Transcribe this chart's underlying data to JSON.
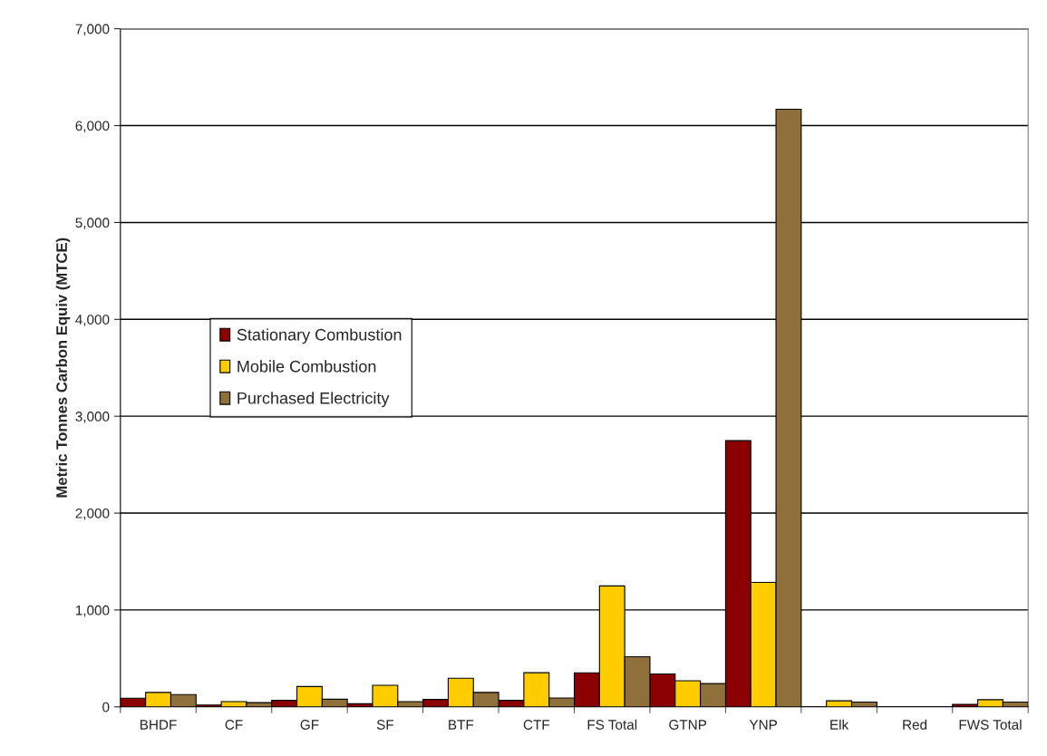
{
  "chart_data": {
    "type": "bar",
    "ylabel": "Metric Tonnes Carbon Equiv (MTCE)",
    "categories": [
      "BHDF",
      "CF",
      "GF",
      "SF",
      "BTF",
      "CTF",
      "FS Total",
      "GTNP",
      "YNP",
      "Elk",
      "Red",
      "FWS Total"
    ],
    "series": [
      {
        "name": "Stationary Combustion",
        "color": "#8b0000",
        "values": [
          89,
          19,
          67,
          32,
          76,
          67,
          351,
          339,
          2748,
          null,
          null,
          25
        ]
      },
      {
        "name": "Mobile Combustion",
        "color": "#ffcc00",
        "values": [
          149,
          54,
          210,
          222,
          295,
          352,
          1248,
          269,
          1285,
          62,
          null,
          74
        ]
      },
      {
        "name": "Purchased Electricity",
        "color": "#8f703b",
        "values": [
          127,
          44,
          79,
          54,
          149,
          92,
          517,
          240,
          6169,
          50,
          null,
          50
        ]
      }
    ],
    "ylim": [
      0,
      7000
    ],
    "yticks": [
      {
        "value": 0,
        "label": "0"
      },
      {
        "value": 1000,
        "label": "1,000"
      },
      {
        "value": 2000,
        "label": "2,000"
      },
      {
        "value": 3000,
        "label": "3,000"
      },
      {
        "value": 4000,
        "label": "4,000"
      },
      {
        "value": 5000,
        "label": "5,000"
      },
      {
        "value": 6000,
        "label": "6,000"
      },
      {
        "value": 7000,
        "label": "7,000"
      }
    ],
    "grid": "y",
    "legend": "center left"
  }
}
